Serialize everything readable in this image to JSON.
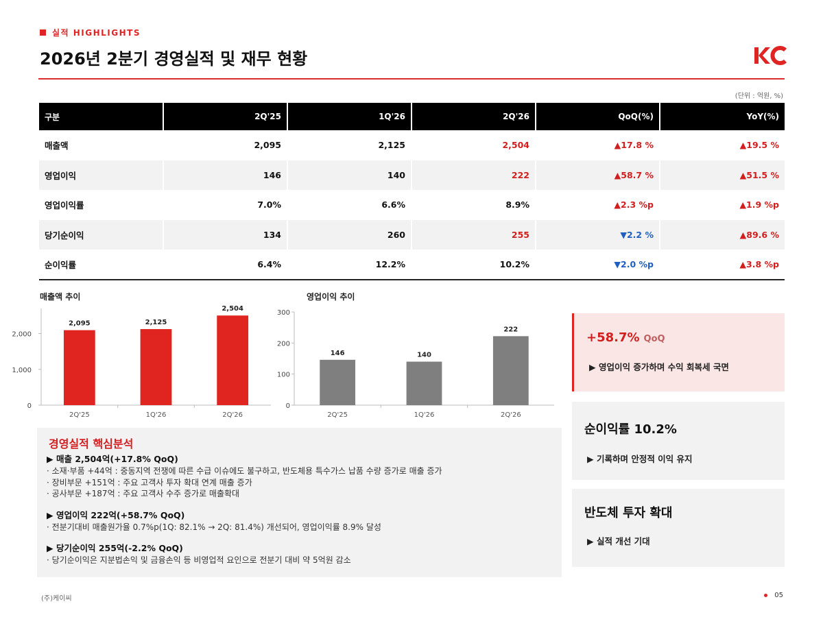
{
  "header": {
    "section_tag": "실적 HIGHLIGHTS",
    "title": "2026년 2분기 경영실적 및 재무 현황",
    "logo_text": "KC",
    "unit_note": "(단위 : 억원, %)"
  },
  "table": {
    "columns": [
      "구분",
      "2Q'25",
      "1Q'26",
      "2Q'26",
      "QoQ(%)",
      "YoY(%)"
    ],
    "rows": [
      {
        "label": "매출액",
        "q2_25": "2,095",
        "q1_26": "2,125",
        "q2_26": "2,504",
        "qoq": "▲17.8 %",
        "yoy": "▲19.5 %"
      },
      {
        "label": "영업이익",
        "q2_25": "146",
        "q1_26": "140",
        "q2_26": "222",
        "qoq": "▲58.7 %",
        "yoy": "▲51.5 %"
      },
      {
        "label": "영업이익률",
        "q2_25": "7.0%",
        "q1_26": "6.6%",
        "q2_26": "8.9%",
        "qoq": "▲2.3 %p",
        "yoy": "▲1.9 %p"
      },
      {
        "label": "당기순이익",
        "q2_25": "134",
        "q1_26": "260",
        "q2_26": "255",
        "qoq": "▼2.2 %",
        "yoy": "▲89.6 %"
      },
      {
        "label": "순이익률",
        "q2_25": "6.4%",
        "q1_26": "12.2%",
        "q2_26": "10.2%",
        "qoq": "▼2.0 %p",
        "yoy": "▲3.8 %p"
      }
    ],
    "colors": {
      "up": "#d21e1e",
      "down": "#1f5fbf",
      "highlight": "#d21e1e"
    }
  },
  "chart_data": [
    {
      "type": "bar",
      "title": "매출액 추이",
      "categories": [
        "2Q'25",
        "1Q'26",
        "2Q'26"
      ],
      "values": [
        2095,
        2125,
        2504
      ],
      "value_labels": [
        "2,095",
        "2,125",
        "2,504"
      ],
      "ylim": [
        0,
        2700
      ],
      "yticks": [
        0,
        1000,
        2000
      ],
      "ytick_labels": [
        "0",
        "1,000",
        "2,000"
      ],
      "bar_color": "#e02420",
      "grid": false
    },
    {
      "type": "bar",
      "title": "영업이익 추이",
      "categories": [
        "2Q'25",
        "1Q'26",
        "2Q'26"
      ],
      "values": [
        146,
        140,
        222
      ],
      "value_labels": [
        "146",
        "140",
        "222"
      ],
      "ylim": [
        0,
        300
      ],
      "yticks": [
        0,
        100,
        200,
        300
      ],
      "ytick_labels": [
        "0",
        "100",
        "200",
        "300"
      ],
      "bar_color": "#7f7f7f",
      "grid": false
    }
  ],
  "analysis": {
    "title": "경영실적 핵심분석",
    "groups": [
      {
        "head": "▶ 매출 2,504억(+17.8% QoQ)",
        "lines": [
          "· 소재·부품 +44억 : 중동지역 전쟁에 따른 수급 이슈에도 불구하고, 반도체용 특수가스 납품 수량 증가로 매출 증가",
          "· 장비부문 +151억 : 주요 고객사 투자 확대 연계 매출 증가",
          "· 공사부문 +187억 : 주요 고객사 수주 증가로 매출확대"
        ]
      },
      {
        "head": "▶ 영업이익 222억(+58.7% QoQ)",
        "lines": [
          "· 전분기대비 매출원가율 0.7%p(1Q: 82.1% → 2Q: 81.4%) 개선되어, 영업이익률 8.9% 달성"
        ]
      },
      {
        "head": "▶ 당기순이익 255억(-2.2% QoQ)",
        "lines": [
          "· 당기순이익은 지분법손익 및 금융손익 등 비영업적 요인으로 전분기 대비 약 5억원 감소"
        ]
      }
    ]
  },
  "cards": [
    {
      "big": "+58.7%",
      "sub": "QoQ",
      "desc": "▶ 영업이익 증가하며 수익 회복세 국면"
    },
    {
      "big": "순이익률 10.2%",
      "desc": "▶ 기록하며 안정적 이익 유지"
    },
    {
      "big": "반도체 투자 확대",
      "desc": "▶ 실적 개선 기대"
    }
  ],
  "footer": {
    "company": "(주)케이씨",
    "page": "05"
  }
}
